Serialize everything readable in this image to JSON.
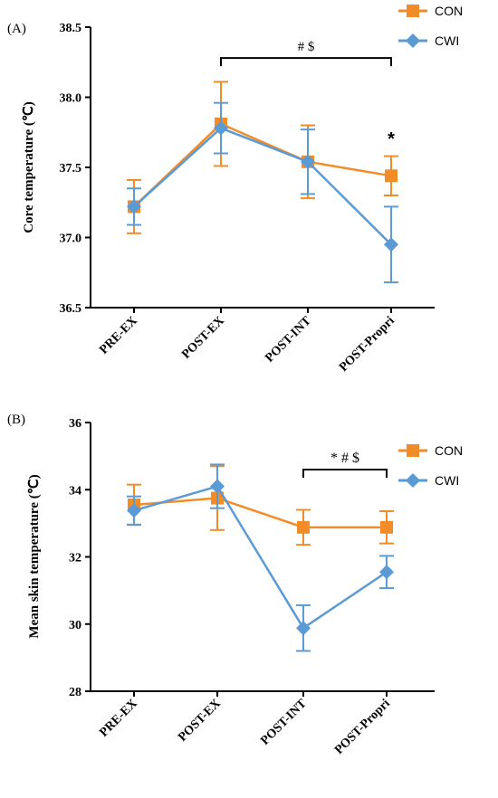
{
  "chart_data": [
    {
      "panel": "(A)",
      "type": "line",
      "ylabel": "Core temperature (℃)",
      "categories": [
        "PRE-EX",
        "POST-EX",
        "POST-INT",
        "POST-Propri"
      ],
      "ylim": [
        36.5,
        38.5
      ],
      "yticks": [
        "36.5",
        "37.0",
        "37.5",
        "38.0",
        "38.5"
      ],
      "series": [
        {
          "name": "CON",
          "color": "#F28C28",
          "marker": "square",
          "values": [
            37.22,
            37.81,
            37.54,
            37.44
          ],
          "errors": [
            0.19,
            0.3,
            0.26,
            0.14
          ]
        },
        {
          "name": "CWI",
          "color": "#5B9BD5",
          "marker": "diamond",
          "values": [
            37.22,
            37.78,
            37.54,
            36.95
          ],
          "errors": [
            0.13,
            0.18,
            0.23,
            0.27
          ]
        }
      ],
      "annotations": [
        {
          "text": "# $",
          "from": 1,
          "to": 3,
          "y": 38.28
        },
        {
          "text": "*",
          "at": 3,
          "y": 37.66
        }
      ]
    },
    {
      "panel": "(B)",
      "type": "line",
      "ylabel": "Mean skin temperature (℃)",
      "categories": [
        "PRE-EX",
        "POST-EX",
        "POST-INT",
        "POST-Propri"
      ],
      "ylim": [
        28,
        36
      ],
      "yticks": [
        "28",
        "30",
        "32",
        "34",
        "36"
      ],
      "series": [
        {
          "name": "CON",
          "color": "#F28C28",
          "marker": "square",
          "values": [
            33.55,
            33.75,
            32.88,
            32.88
          ],
          "errors": [
            0.6,
            0.95,
            0.52,
            0.48
          ]
        },
        {
          "name": "CWI",
          "color": "#5B9BD5",
          "marker": "diamond",
          "values": [
            33.38,
            34.1,
            29.88,
            31.55
          ],
          "errors": [
            0.42,
            0.65,
            0.68,
            0.48
          ]
        }
      ],
      "annotations": [
        {
          "text": "* # $",
          "from": 2,
          "to": 3,
          "y": 34.6
        }
      ]
    }
  ]
}
